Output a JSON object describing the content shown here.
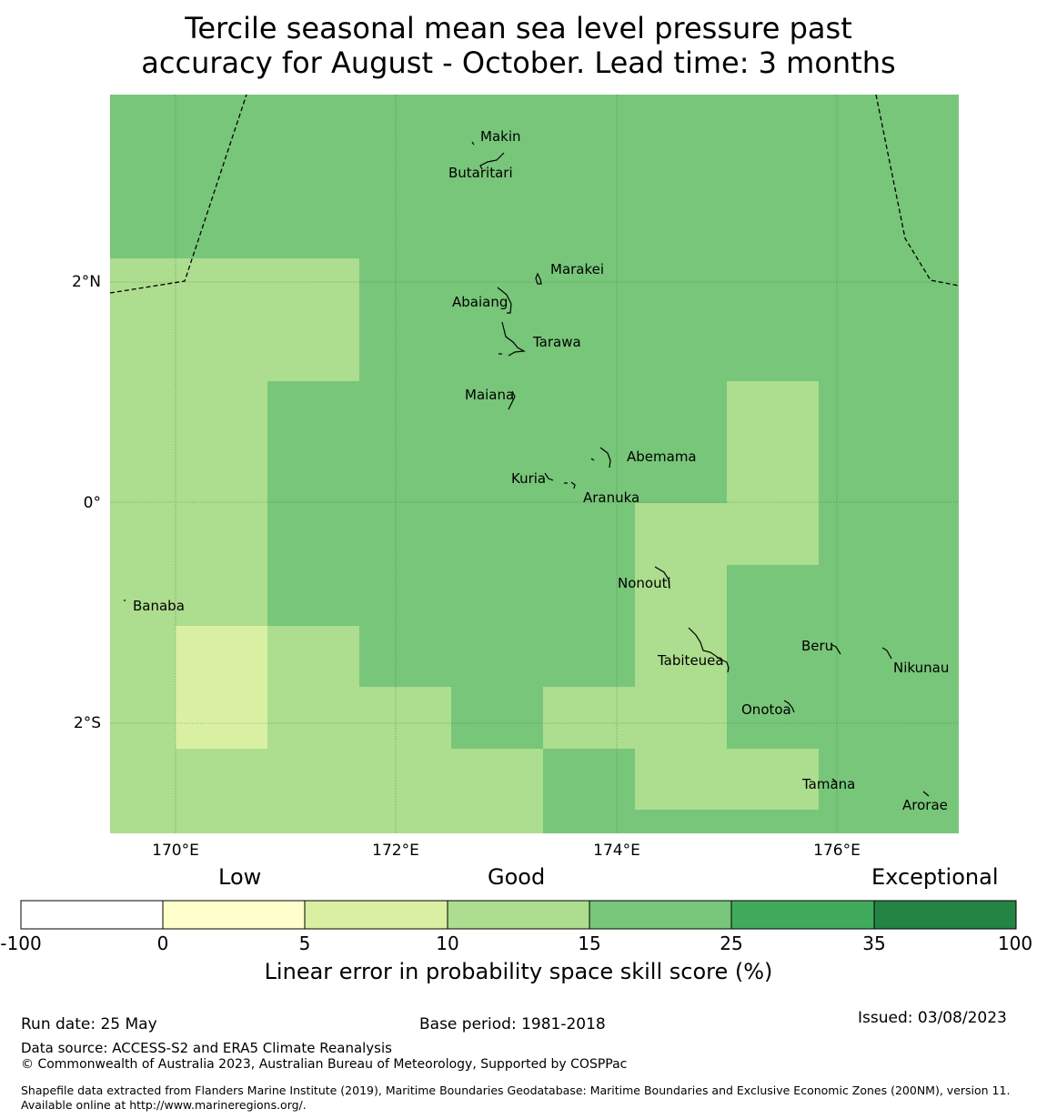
{
  "title": {
    "line1": "Tercile seasonal mean sea level pressure past",
    "line2": "accuracy for August - October. Lead time: 3 months"
  },
  "map": {
    "lon_ticks": [
      "170°E",
      "172°E",
      "174°E",
      "176°E"
    ],
    "lat_ticks": [
      "2°N",
      "0°",
      "2°S"
    ],
    "places": [
      "Makin",
      "Butaritari",
      "Marakei",
      "Abaiang",
      "Tarawa",
      "Maiana",
      "Abemama",
      "Kuria",
      "Aranuka",
      "Nonouti",
      "Banaba",
      "Beru",
      "Tabiteuea",
      "Nikunau",
      "Onotoa",
      "Tamana",
      "Arorae"
    ]
  },
  "legend": {
    "categories": [
      "Low",
      "Good",
      "Exceptional"
    ],
    "ticks": [
      "-100",
      "0",
      "5",
      "10",
      "15",
      "25",
      "35",
      "100"
    ],
    "colors": [
      "#ffffff",
      "#ffffcc",
      "#d9f0a3",
      "#addd8e",
      "#78c679",
      "#41ab5d",
      "#238443"
    ],
    "label": "Linear error in probability space skill score (%)"
  },
  "footer": {
    "run_date": "Run date: 25 May",
    "base_period": "Base period: 1981-2018",
    "issued": "Issued: 03/08/2023",
    "data_source": "Data source: ACCESS-S2 and ERA5 Climate Reanalysis",
    "copyright": "© Commonwealth of Australia 2023, Australian Bureau of Meteorology, Supported by COSPPac",
    "shapefile": "Shapefile data extracted from Flanders Marine Institute (2019), Maritime Boundaries Geodatabase: Maritime Boundaries and Exclusive Economic Zones (200NM), version 11. Available online at http://www.marineregions.org/."
  }
}
